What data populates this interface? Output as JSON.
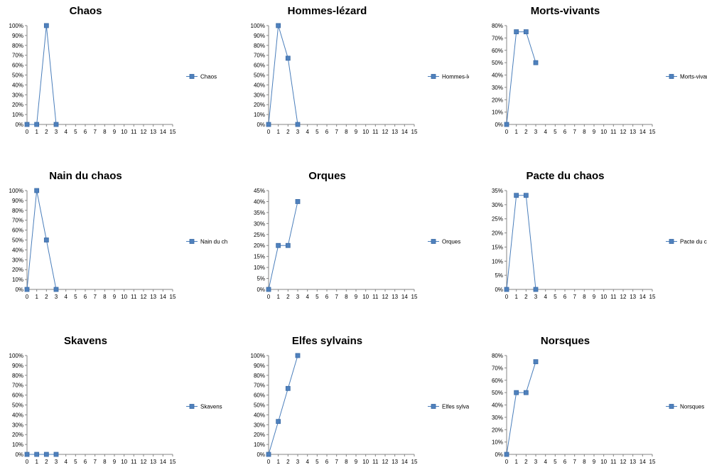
{
  "chart_data": [
    {
      "type": "line",
      "title": "Chaos",
      "x": [
        0,
        1,
        2,
        3
      ],
      "series": [
        {
          "name": "Chaos",
          "values": [
            0,
            0,
            100,
            0
          ]
        }
      ],
      "xticks": [
        "0",
        "1",
        "2",
        "3",
        "4",
        "5",
        "6",
        "7",
        "8",
        "9",
        "10",
        "11",
        "12",
        "13",
        "14",
        "15"
      ],
      "xlim": [
        0,
        15
      ],
      "ylim": [
        0,
        100
      ],
      "yticks": [
        "0%",
        "10%",
        "20%",
        "30%",
        "40%",
        "50%",
        "60%",
        "70%",
        "80%",
        "90%",
        "100%"
      ],
      "legend": "right",
      "grid": false
    },
    {
      "type": "line",
      "title": "Hommes-lézard",
      "x": [
        0,
        1,
        2,
        3
      ],
      "series": [
        {
          "name": "Hommes-lézard",
          "values": [
            0,
            100,
            67,
            0
          ]
        }
      ],
      "xticks": [
        "0",
        "1",
        "2",
        "3",
        "4",
        "5",
        "6",
        "7",
        "8",
        "9",
        "10",
        "11",
        "12",
        "13",
        "14",
        "15"
      ],
      "xlim": [
        0,
        15
      ],
      "ylim": [
        0,
        100
      ],
      "yticks": [
        "0%",
        "10%",
        "20%",
        "30%",
        "40%",
        "50%",
        "60%",
        "70%",
        "80%",
        "90%",
        "100%"
      ],
      "legend": "right",
      "grid": false
    },
    {
      "type": "line",
      "title": "Morts-vivants",
      "x": [
        0,
        1,
        2,
        3
      ],
      "series": [
        {
          "name": "Morts-vivants",
          "values": [
            0,
            75,
            75,
            50
          ]
        }
      ],
      "xticks": [
        "0",
        "1",
        "2",
        "3",
        "4",
        "5",
        "6",
        "7",
        "8",
        "9",
        "10",
        "11",
        "12",
        "13",
        "14",
        "15"
      ],
      "xlim": [
        0,
        15
      ],
      "ylim": [
        0,
        80
      ],
      "yticks": [
        "0%",
        "10%",
        "20%",
        "30%",
        "40%",
        "50%",
        "60%",
        "70%",
        "80%"
      ],
      "legend": "right",
      "grid": false
    },
    {
      "type": "line",
      "title": "Nain du chaos",
      "x": [
        0,
        1,
        2,
        3
      ],
      "series": [
        {
          "name": "Nain du chaos",
          "values": [
            0,
            100,
            50,
            0
          ]
        }
      ],
      "xticks": [
        "0",
        "1",
        "2",
        "3",
        "4",
        "5",
        "6",
        "7",
        "8",
        "9",
        "10",
        "11",
        "12",
        "13",
        "14",
        "15"
      ],
      "xlim": [
        0,
        15
      ],
      "ylim": [
        0,
        100
      ],
      "yticks": [
        "0%",
        "10%",
        "20%",
        "30%",
        "40%",
        "50%",
        "60%",
        "70%",
        "80%",
        "90%",
        "100%"
      ],
      "legend": "right",
      "grid": false
    },
    {
      "type": "line",
      "title": "Orques",
      "x": [
        0,
        1,
        2,
        3
      ],
      "series": [
        {
          "name": "Orques",
          "values": [
            0,
            20,
            20,
            40
          ]
        }
      ],
      "xticks": [
        "0",
        "1",
        "2",
        "3",
        "4",
        "5",
        "6",
        "7",
        "8",
        "9",
        "10",
        "11",
        "12",
        "13",
        "14",
        "15"
      ],
      "xlim": [
        0,
        15
      ],
      "ylim": [
        0,
        45
      ],
      "yticks": [
        "0%",
        "5%",
        "10%",
        "15%",
        "20%",
        "25%",
        "30%",
        "35%",
        "40%",
        "45%"
      ],
      "legend": "right",
      "grid": false
    },
    {
      "type": "line",
      "title": "Pacte du chaos",
      "x": [
        0,
        1,
        2,
        3
      ],
      "series": [
        {
          "name": "Pacte du chaos",
          "values": [
            0,
            33.3,
            33.3,
            0
          ]
        }
      ],
      "xticks": [
        "0",
        "1",
        "2",
        "3",
        "4",
        "5",
        "6",
        "7",
        "8",
        "9",
        "10",
        "11",
        "12",
        "13",
        "14",
        "15"
      ],
      "xlim": [
        0,
        15
      ],
      "ylim": [
        0,
        35
      ],
      "yticks": [
        "0%",
        "5%",
        "10%",
        "15%",
        "20%",
        "25%",
        "30%",
        "35%"
      ],
      "legend": "right",
      "grid": false
    },
    {
      "type": "line",
      "title": "Skavens",
      "x": [
        0,
        1,
        2,
        3
      ],
      "series": [
        {
          "name": "Skavens",
          "values": [
            0,
            0,
            0,
            0
          ]
        }
      ],
      "xticks": [
        "0",
        "1",
        "2",
        "3",
        "4",
        "5",
        "6",
        "7",
        "8",
        "9",
        "10",
        "11",
        "12",
        "13",
        "14",
        "15"
      ],
      "xlim": [
        0,
        15
      ],
      "ylim": [
        0,
        100
      ],
      "yticks": [
        "0%",
        "10%",
        "20%",
        "30%",
        "40%",
        "50%",
        "60%",
        "70%",
        "80%",
        "90%",
        "100%"
      ],
      "legend": "right",
      "grid": false
    },
    {
      "type": "line",
      "title": "Elfes sylvains",
      "x": [
        0,
        1,
        2,
        3
      ],
      "series": [
        {
          "name": "Elfes sylvains",
          "values": [
            0,
            33.3,
            66.7,
            100
          ]
        }
      ],
      "xticks": [
        "0",
        "1",
        "2",
        "3",
        "4",
        "5",
        "6",
        "7",
        "8",
        "9",
        "10",
        "11",
        "12",
        "13",
        "14",
        "15"
      ],
      "xlim": [
        0,
        15
      ],
      "ylim": [
        0,
        100
      ],
      "yticks": [
        "0%",
        "10%",
        "20%",
        "30%",
        "40%",
        "50%",
        "60%",
        "70%",
        "80%",
        "90%",
        "100%"
      ],
      "legend": "right",
      "grid": false
    },
    {
      "type": "line",
      "title": "Norsques",
      "x": [
        0,
        1,
        2,
        3
      ],
      "series": [
        {
          "name": "Norsques",
          "values": [
            0,
            50,
            50,
            75
          ]
        }
      ],
      "xticks": [
        "0",
        "1",
        "2",
        "3",
        "4",
        "5",
        "6",
        "7",
        "8",
        "9",
        "10",
        "11",
        "12",
        "13",
        "14",
        "15"
      ],
      "xlim": [
        0,
        15
      ],
      "ylim": [
        0,
        80
      ],
      "yticks": [
        "0%",
        "10%",
        "20%",
        "30%",
        "40%",
        "50%",
        "60%",
        "70%",
        "80%"
      ],
      "legend": "right",
      "grid": false
    }
  ],
  "colors": {
    "series_line": "#4a7ebb",
    "marker_fill": "#4f81bd",
    "marker_stroke": "#3a6aa5",
    "axis": "#868686",
    "text": "#000000"
  }
}
